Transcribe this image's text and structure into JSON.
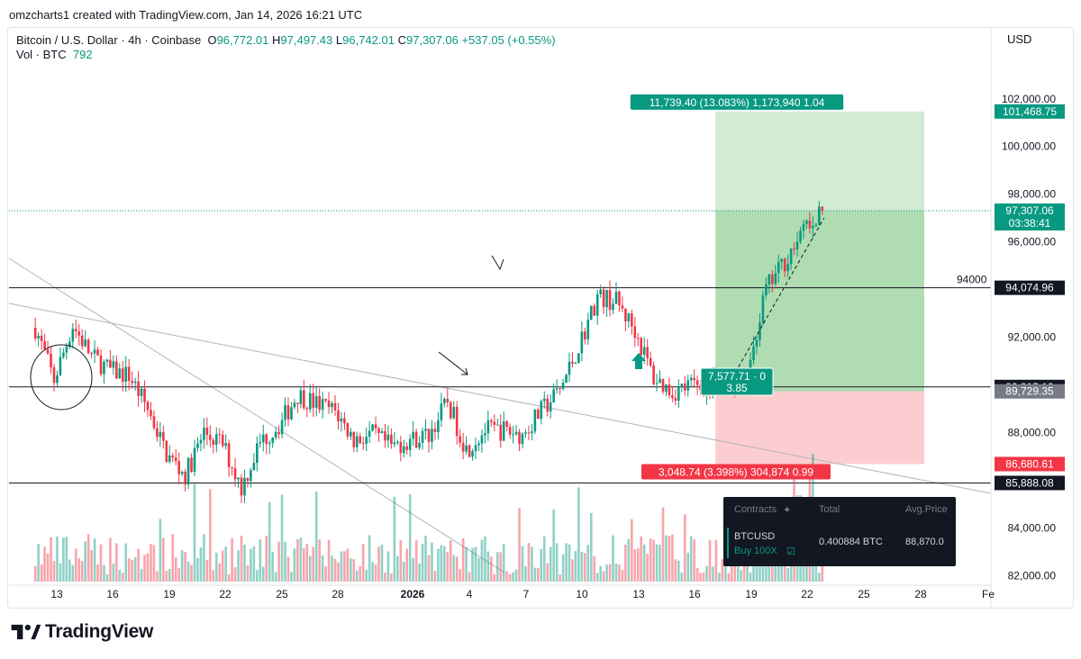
{
  "credit": "omzcharts1 created with TradingView.com, Jan 14, 2026 16:21 UTC",
  "symbol": {
    "name": "Bitcoin / U.S. Dollar · 4h · Coinbase",
    "o_label": "O",
    "o": "96,772.01",
    "h_label": "H",
    "h": "97,497.43",
    "l_label": "L",
    "l": "96,742.01",
    "c_label": "C",
    "c": "97,307.06",
    "change": "+537.05 (+0.55%)",
    "vol_label": "Vol · BTC",
    "vol": "792"
  },
  "currency": "USD",
  "colors": {
    "up": "#089981",
    "down": "#f23645",
    "profit_zone": "#4caf50",
    "loss_zone": "#f23645",
    "label_green": "#089981",
    "label_red": "#f23645"
  },
  "chart_data": {
    "type": "candlestick",
    "timeframe": "4h",
    "ylim": [
      81600,
      103200
    ],
    "y_ticks": [
      "82,000.00",
      "84,000.00",
      "86,000.00",
      "88,000.00",
      "90,000.00",
      "92,000.00",
      "94,000.00",
      "96,000.00",
      "98,000.00",
      "100,000.00",
      "102,000.00"
    ],
    "x_ticks": [
      "13",
      "16",
      "19",
      "22",
      "25",
      "28",
      "2026",
      "4",
      "7",
      "10",
      "13",
      "16",
      "19",
      "22",
      "25",
      "28",
      "Fe"
    ],
    "price_path": [
      [
        0,
        92400
      ],
      [
        1,
        90200
      ],
      [
        2,
        92500
      ],
      [
        3,
        91200
      ],
      [
        4,
        90600
      ],
      [
        5,
        90400
      ],
      [
        6,
        89000
      ],
      [
        7,
        87100
      ],
      [
        8,
        86200
      ],
      [
        9,
        88000
      ],
      [
        10,
        87500
      ],
      [
        11,
        85700
      ],
      [
        12,
        87600
      ],
      [
        13,
        88300
      ],
      [
        14,
        89600
      ],
      [
        15,
        89200
      ],
      [
        16,
        88900
      ],
      [
        17,
        87700
      ],
      [
        18,
        87900
      ],
      [
        19,
        87400
      ],
      [
        20,
        87700
      ],
      [
        21,
        87900
      ],
      [
        22,
        89300
      ],
      [
        23,
        87300
      ],
      [
        24,
        88100
      ],
      [
        25,
        88100
      ],
      [
        26,
        87900
      ],
      [
        27,
        88900
      ],
      [
        28,
        89800
      ],
      [
        29,
        91600
      ],
      [
        30,
        93700
      ],
      [
        31,
        93500
      ],
      [
        32,
        92300
      ],
      [
        33,
        90300
      ],
      [
        34,
        89700
      ],
      [
        35,
        90000
      ],
      [
        36,
        89900
      ],
      [
        37,
        90000
      ],
      [
        38,
        90500
      ],
      [
        39,
        94000
      ],
      [
        40,
        95200
      ],
      [
        41,
        96400
      ],
      [
        42,
        97307
      ]
    ],
    "horizontal_lines": [
      {
        "price": 94074.96,
        "label": "94000"
      },
      {
        "price": 89915.1,
        "label": ""
      },
      {
        "price": 85888.08,
        "label": ""
      }
    ],
    "price_labels": [
      {
        "price": 101468.75,
        "text": "101,468.75",
        "color": "#089981"
      },
      {
        "price": 97307.06,
        "text": "97,307.06",
        "subtext": "03:38:41",
        "color": "#089981"
      },
      {
        "price": 94074.96,
        "text": "94,074.96",
        "color": "#131722"
      },
      {
        "price": 89915.1,
        "text": "89,915.10",
        "color": "#131722"
      },
      {
        "price": 89729.35,
        "text": "89,729.35",
        "color": "#787b86"
      },
      {
        "price": 86680.61,
        "text": "86,680.61",
        "color": "#f23645"
      },
      {
        "price": 85888.08,
        "text": "85,888.08",
        "color": "#131722"
      }
    ],
    "position": {
      "side": "long",
      "entry": 89729.35,
      "target": 101468.75,
      "stop": 86680.61,
      "target_label": "11,739.40 (13.083%) 1,173,940 1.04",
      "stop_label": "3,048.74 (3.398%) 304,874 0.99",
      "entry_label_1": "7,577.71 · 0",
      "entry_label_2": "3.85"
    }
  },
  "panel": {
    "col1": "Contracts",
    "col2": "Total",
    "col3": "Avg.Price",
    "symbol": "BTCUSD",
    "side": "Buy 100X",
    "total": "0.400884 BTC",
    "avg_price": "88,870.0"
  },
  "brand": "TradingView"
}
